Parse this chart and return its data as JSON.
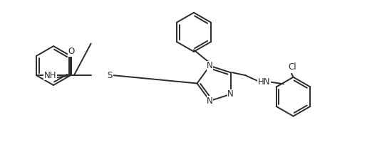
{
  "background_color": "#ffffff",
  "line_color": "#2b2b2b",
  "line_width": 1.4,
  "font_size": 8.5,
  "figsize": [
    5.29,
    2.1
  ],
  "dpi": 100,
  "xlim": [
    0,
    10.58
  ],
  "ylim": [
    0,
    4.2
  ]
}
